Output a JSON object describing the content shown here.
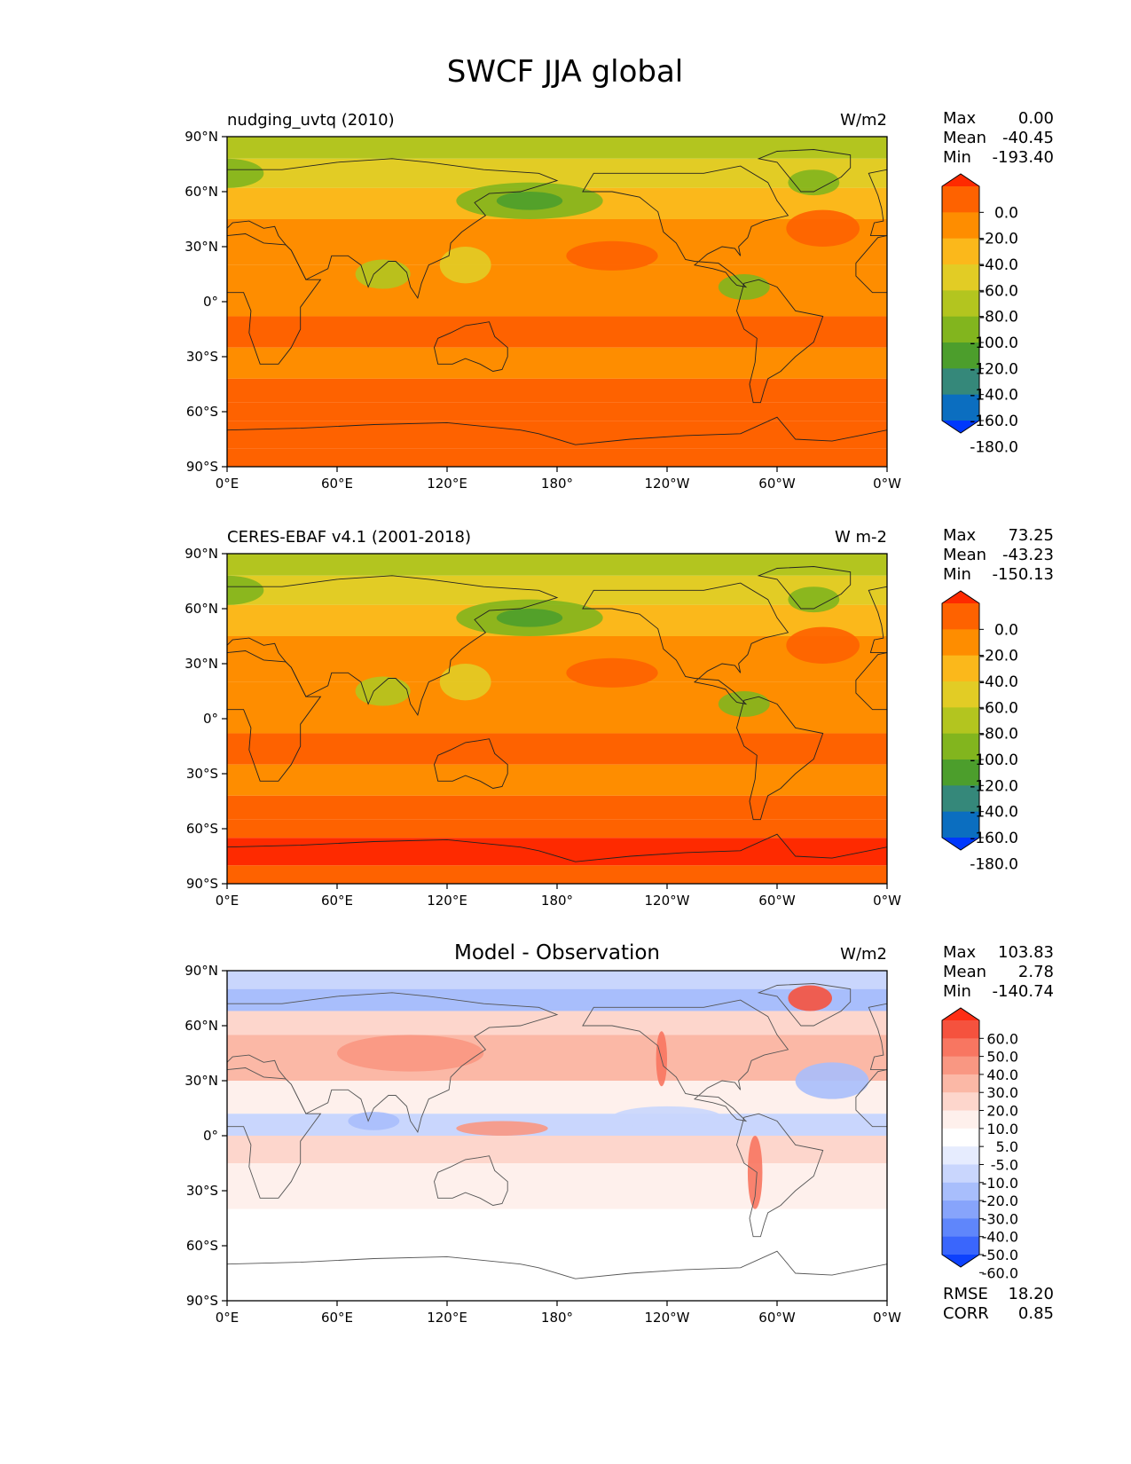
{
  "title": "SWCF JJA global",
  "chart_data": [
    {
      "type": "heatmap",
      "title": "nudging_uvtq (2010)",
      "units": "W/m2",
      "xlabel": "",
      "ylabel": "",
      "x_ticks": [
        "0°E",
        "60°E",
        "120°E",
        "180°",
        "120°W",
        "60°W",
        "0°W"
      ],
      "y_ticks": [
        "90°N",
        "60°N",
        "30°N",
        "0°",
        "30°S",
        "60°S",
        "90°S"
      ],
      "xlim": [
        0,
        360
      ],
      "ylim": [
        -90,
        90
      ],
      "stats": [
        {
          "label": "Max",
          "value": "0.00"
        },
        {
          "label": "Mean",
          "value": "-40.45"
        },
        {
          "label": "Min",
          "value": "-193.40"
        }
      ],
      "colorbar": {
        "levels": [
          "0.0",
          "-20.0",
          "-40.0",
          "-60.0",
          "-80.0",
          "-100.0",
          "-120.0",
          "-140.0",
          "-160.0",
          "-180.0"
        ],
        "colors": [
          "#fe2a00",
          "#fe6200",
          "#fe8d00",
          "#fbb81b",
          "#e2cc25",
          "#b3c51f",
          "#82b51e",
          "#4c9e2c",
          "#35887a",
          "#0b6ec0",
          "#0038fd"
        ]
      }
    },
    {
      "type": "heatmap",
      "title": "CERES-EBAF v4.1 (2001-2018)",
      "units": "W m-2",
      "xlabel": "",
      "ylabel": "",
      "x_ticks": [
        "0°E",
        "60°E",
        "120°E",
        "180°",
        "120°W",
        "60°W",
        "0°W"
      ],
      "y_ticks": [
        "90°N",
        "60°N",
        "30°N",
        "0°",
        "30°S",
        "60°S",
        "90°S"
      ],
      "xlim": [
        0,
        360
      ],
      "ylim": [
        -90,
        90
      ],
      "stats": [
        {
          "label": "Max",
          "value": "73.25"
        },
        {
          "label": "Mean",
          "value": "-43.23"
        },
        {
          "label": "Min",
          "value": "-150.13"
        }
      ],
      "colorbar": {
        "levels": [
          "0.0",
          "-20.0",
          "-40.0",
          "-60.0",
          "-80.0",
          "-100.0",
          "-120.0",
          "-140.0",
          "-160.0",
          "-180.0"
        ],
        "colors": [
          "#fe2a00",
          "#fe6200",
          "#fe8d00",
          "#fbb81b",
          "#e2cc25",
          "#b3c51f",
          "#82b51e",
          "#4c9e2c",
          "#35887a",
          "#0b6ec0",
          "#0038fd"
        ]
      }
    },
    {
      "type": "heatmap",
      "title": "Model - Observation",
      "units": "W/m2",
      "xlabel": "",
      "ylabel": "",
      "x_ticks": [
        "0°E",
        "60°E",
        "120°E",
        "180°",
        "120°W",
        "60°W",
        "0°W"
      ],
      "y_ticks": [
        "90°N",
        "60°N",
        "30°N",
        "0°",
        "30°S",
        "60°S",
        "90°S"
      ],
      "xlim": [
        0,
        360
      ],
      "ylim": [
        -90,
        90
      ],
      "stats": [
        {
          "label": "Max",
          "value": "103.83"
        },
        {
          "label": "Mean",
          "value": "2.78"
        },
        {
          "label": "Min",
          "value": "-140.74"
        }
      ],
      "extra_stats": [
        {
          "label": "RMSE",
          "value": "18.20"
        },
        {
          "label": "CORR",
          "value": "0.85"
        }
      ],
      "colorbar": {
        "levels": [
          "60.0",
          "50.0",
          "40.0",
          "30.0",
          "20.0",
          "10.0",
          "5.0",
          "-5.0",
          "-10.0",
          "-20.0",
          "-30.0",
          "-40.0",
          "-50.0",
          "-60.0"
        ],
        "colors": [
          "#fe2e14",
          "#f5523e",
          "#f87661",
          "#f99782",
          "#fbb8a6",
          "#fdd6cc",
          "#fef0ec",
          "#ffffff",
          "#e6ecfe",
          "#c9d6fd",
          "#a8befc",
          "#87a4fb",
          "#5f86fb",
          "#3a66fc",
          "#0d41fd"
        ]
      }
    }
  ]
}
